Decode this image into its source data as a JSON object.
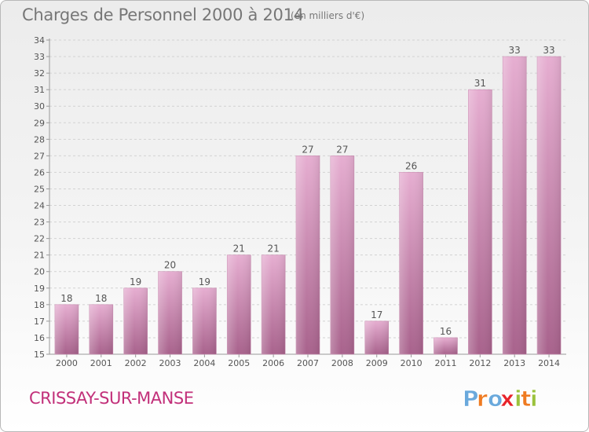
{
  "header": {
    "title": "Charges de Personnel 2000 à 2014",
    "subtitle": "(en milliers d'€)"
  },
  "footer": {
    "commune": "CRISSAY-SUR-MANSE",
    "brand": "Proxiti"
  },
  "colors": {
    "bar_light": "#e6aed1",
    "bar_dark": "#a8628c",
    "commune": "#c2307a",
    "brand_letters": [
      "#6aa9dc",
      "#ef7b22",
      "#6aa9dc",
      "#e8232a",
      "#9bc23c",
      "#ef7b22",
      "#9bc23c"
    ]
  },
  "chart_data": {
    "type": "bar",
    "categories": [
      "2000",
      "2001",
      "2002",
      "2003",
      "2004",
      "2005",
      "2006",
      "2007",
      "2008",
      "2009",
      "2010",
      "2011",
      "2012",
      "2013",
      "2014"
    ],
    "values": [
      18,
      18,
      19,
      20,
      19,
      21,
      21,
      27,
      27,
      17,
      26,
      16,
      31,
      33,
      33
    ],
    "title": "Charges de Personnel 2000 à 2014",
    "xlabel": "",
    "ylabel": "",
    "ylim": [
      15,
      34
    ],
    "yticks": [
      15,
      16,
      17,
      18,
      19,
      20,
      21,
      22,
      23,
      24,
      25,
      26,
      27,
      28,
      29,
      30,
      31,
      32,
      33,
      34
    ],
    "grid": true,
    "legend": "none"
  }
}
